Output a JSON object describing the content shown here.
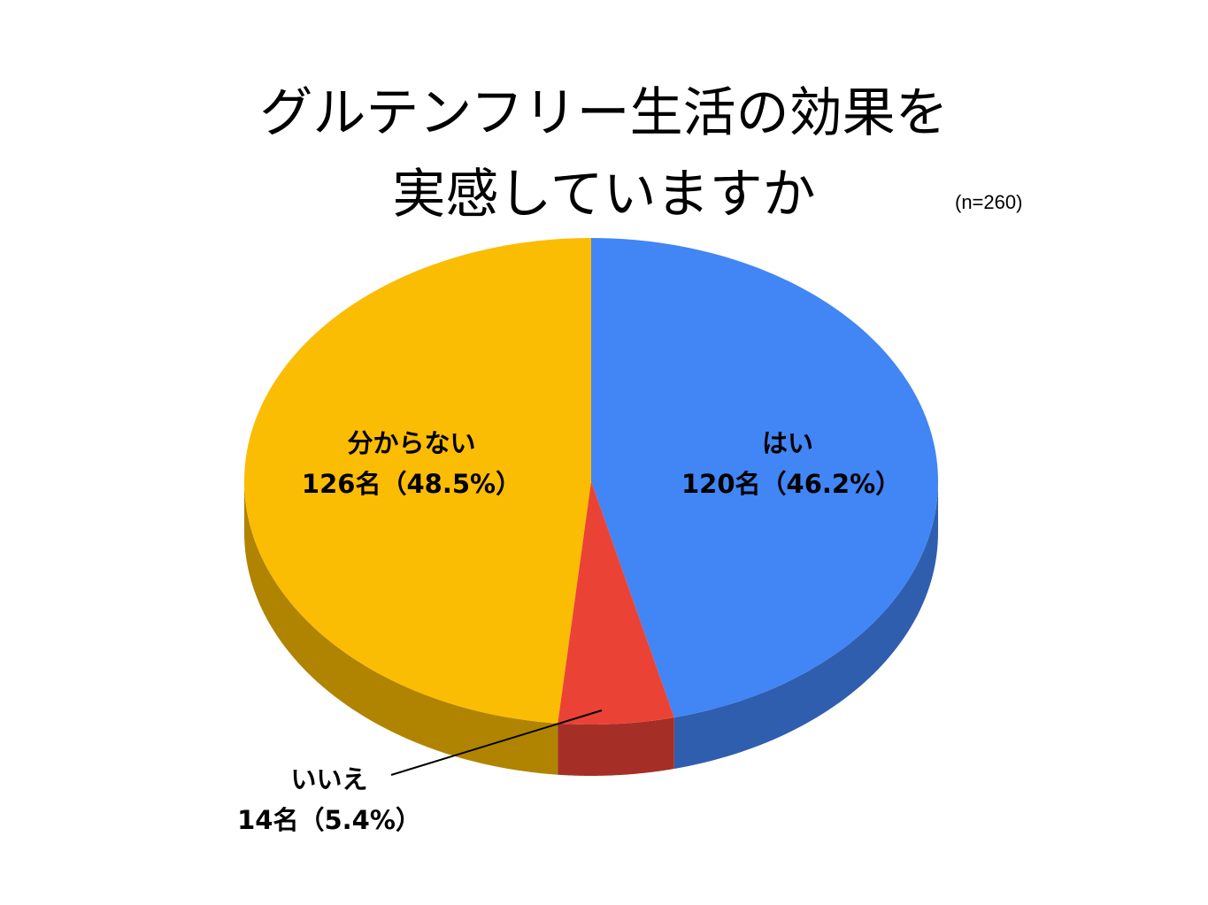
{
  "chart_data": {
    "type": "pie",
    "title_lines": [
      "グルテンフリー生活の効果を",
      "実感していますか"
    ],
    "note": "(n=260)",
    "slices": [
      {
        "label": "はい",
        "value": 120,
        "percent": 46.2,
        "value_text": "120名（46.2%）",
        "color": "#4285F4",
        "side_color": "#2F5EAE"
      },
      {
        "label": "いいえ",
        "value": 14,
        "percent": 5.4,
        "value_text": "14名（5.4%）",
        "color": "#EA4335",
        "side_color": "#A52F26"
      },
      {
        "label": "分からない",
        "value": 126,
        "percent": 48.5,
        "value_text": "126名（48.5%）",
        "color": "#FBBC04",
        "side_color": "#B08400"
      }
    ],
    "style": "3d-pie",
    "start_direction": "top",
    "direction": "clockwise"
  }
}
